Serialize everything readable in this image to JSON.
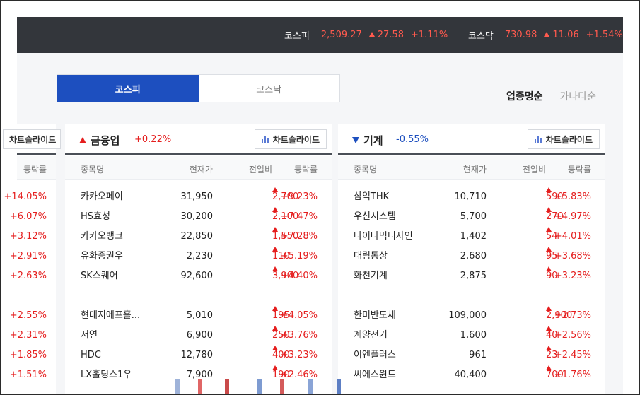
{
  "ticker": {
    "kospi": {
      "name": "코스피",
      "value": "2,509.27",
      "change": "27.58",
      "pct": "+1.11%"
    },
    "kosdaq": {
      "name": "코스닥",
      "value": "730.98",
      "change": "11.06",
      "pct": "+1.54%"
    }
  },
  "market_tabs": [
    "코스피",
    "코스닥"
  ],
  "sort_options": [
    "업종명순",
    "가나다순"
  ],
  "columns": {
    "name": "종목명",
    "price": "현재가",
    "change": "전일비",
    "pct": "등락률"
  },
  "left_partial": {
    "chart_btn": "차트슬라이드",
    "pct_header": "등락률",
    "pcts_top": [
      "+14.05%",
      "+6.07%",
      "+3.12%",
      "+2.91%",
      "+2.63%"
    ],
    "pcts_bottom": [
      "+2.55%",
      "+2.31%",
      "+1.85%",
      "+1.51%"
    ]
  },
  "sectors": [
    {
      "title": "금융업",
      "direction": "up",
      "pct": "+0.22%",
      "chart_btn": "차트슬라이드",
      "rows_top": [
        {
          "name": "카카오페이",
          "price": "31,950",
          "change": "2,700",
          "pct": "+9.23%"
        },
        {
          "name": "HS효성",
          "price": "30,200",
          "change": "2,100",
          "pct": "+7.47%"
        },
        {
          "name": "카카오뱅크",
          "price": "22,850",
          "change": "1,550",
          "pct": "+7.28%"
        },
        {
          "name": "유화증권우",
          "price": "2,230",
          "change": "110",
          "pct": "+5.19%"
        },
        {
          "name": "SK스퀘어",
          "price": "92,600",
          "change": "3,900",
          "pct": "+4.40%"
        }
      ],
      "rows_bottom": [
        {
          "name": "현대지에프홀...",
          "price": "5,010",
          "change": "195",
          "pct": "+4.05%"
        },
        {
          "name": "서연",
          "price": "6,900",
          "change": "250",
          "pct": "+3.76%"
        },
        {
          "name": "HDC",
          "price": "12,780",
          "change": "400",
          "pct": "+3.23%"
        },
        {
          "name": "LX홀딩스1우",
          "price": "7,900",
          "change": "190",
          "pct": "+2.46%"
        }
      ]
    },
    {
      "title": "기계",
      "direction": "down",
      "pct": "-0.55%",
      "chart_btn": "차트슬라이드",
      "rows_top": [
        {
          "name": "삼익THK",
          "price": "10,710",
          "change": "590",
          "pct": "+5.83%"
        },
        {
          "name": "우신시스템",
          "price": "5,700",
          "change": "270",
          "pct": "+4.97%"
        },
        {
          "name": "다이나믹디자인",
          "price": "1,402",
          "change": "54",
          "pct": "+4.01%"
        },
        {
          "name": "대림통상",
          "price": "2,680",
          "change": "95",
          "pct": "+3.68%"
        },
        {
          "name": "화천기계",
          "price": "2,875",
          "change": "90",
          "pct": "+3.23%"
        }
      ],
      "rows_bottom": [
        {
          "name": "한미반도체",
          "price": "109,000",
          "change": "2,900",
          "pct": "+2.73%"
        },
        {
          "name": "계양전기",
          "price": "1,600",
          "change": "40",
          "pct": "+2.56%"
        },
        {
          "name": "이엔플러스",
          "price": "961",
          "change": "23",
          "pct": "+2.45%"
        },
        {
          "name": "씨에스윈드",
          "price": "40,400",
          "change": "700",
          "pct": "+1.76%"
        }
      ]
    }
  ],
  "colors": {
    "accent_blue": "#1d4fbf",
    "up_red": "#e51e1e",
    "ticker_bg": "#33363b"
  }
}
